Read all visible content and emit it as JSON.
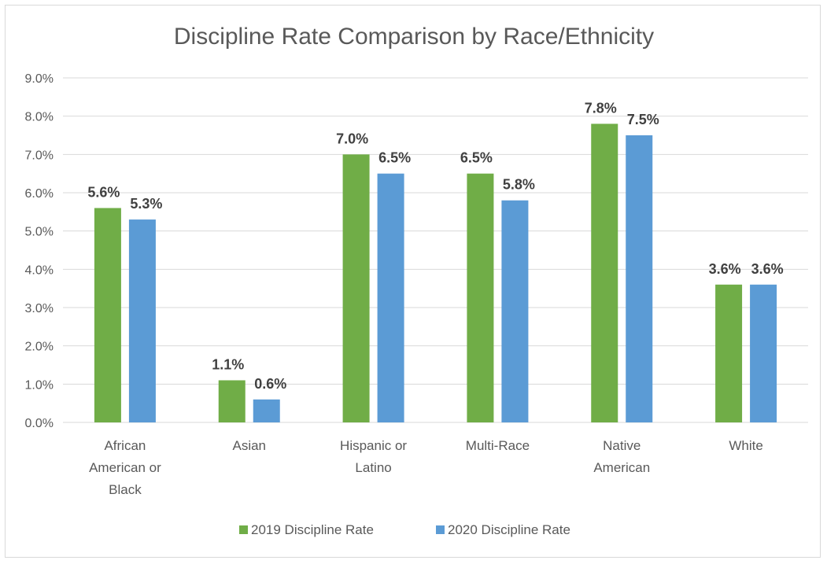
{
  "chart_data": {
    "type": "bar",
    "title": "Discipline Rate Comparison by Race/Ethnicity",
    "xlabel": "",
    "ylabel": "",
    "ylim": [
      0,
      9
    ],
    "y_ticks": [
      "0.0%",
      "1.0%",
      "2.0%",
      "3.0%",
      "4.0%",
      "5.0%",
      "6.0%",
      "7.0%",
      "8.0%",
      "9.0%"
    ],
    "grid": true,
    "legend_position": "bottom",
    "categories": [
      [
        "African",
        "American or",
        "Black"
      ],
      [
        "Asian"
      ],
      [
        "Hispanic or",
        "Latino"
      ],
      [
        "Multi-Race"
      ],
      [
        "Native",
        "American"
      ],
      [
        "White"
      ]
    ],
    "series": [
      {
        "name": "2019 Discipline Rate",
        "color": "#70ad47",
        "values": [
          5.6,
          1.1,
          7.0,
          6.5,
          7.8,
          3.6
        ],
        "labels": [
          "5.6%",
          "1.1%",
          "7.0%",
          "6.5%",
          "7.8%",
          "3.6%"
        ]
      },
      {
        "name": "2020 Discipline Rate",
        "color": "#5b9bd5",
        "values": [
          5.3,
          0.6,
          6.5,
          5.8,
          7.5,
          3.6
        ],
        "labels": [
          "5.3%",
          "0.6%",
          "6.5%",
          "5.8%",
          "7.5%",
          "3.6%"
        ]
      }
    ]
  }
}
